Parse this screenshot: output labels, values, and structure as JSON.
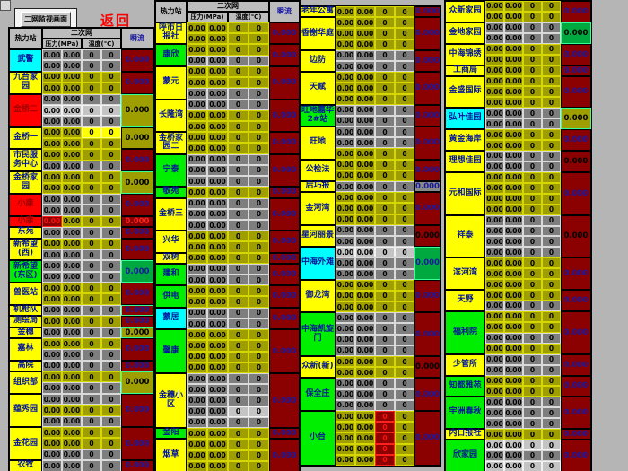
{
  "titlebar": {
    "button_label": "二网监视画面",
    "return_label": "返回"
  },
  "header": {
    "station": "热力站",
    "network": "二次网",
    "pressure": "压力(MPa)",
    "temperature": "温度(℃)",
    "flow": "瞬流"
  },
  "values": {
    "pressure": "0.00",
    "temperature": "0",
    "flow": "0.000"
  },
  "colors": {
    "stage_bg": "#b5b5b5",
    "station_yellow": "#ffff00",
    "station_green": "#00ee00",
    "station_cyan": "#00ffff",
    "station_red": "#ff0000",
    "station_text": "#00149c",
    "station_text_on_red": "#9c0000",
    "cell_olive": "#9e9e00",
    "cell_gray": "#7e7e7e",
    "result_maroon": "#8b0000",
    "result_green": "#00a840",
    "result_olive": "#9e9e00",
    "result_navy_text": "#1818a0"
  },
  "groups": [
    {
      "id": "g1",
      "has_header": true,
      "stations": [
        {
          "n": "武警",
          "bg": "cyan",
          "rows": [
            "g",
            "g"
          ],
          "res": [
            "maroon",
            "navy"
          ]
        },
        {
          "n": "九台家园",
          "bg": "yellow",
          "rows": [
            "o",
            "o"
          ],
          "res": [
            "maroon",
            "navy"
          ]
        },
        {
          "n": "金桥二",
          "bg": "red",
          "rows": [
            "g",
            "s",
            "g"
          ],
          "res": [
            "olive",
            "black"
          ],
          "resb": true
        },
        {
          "n": "金桥一",
          "bg": "yellow",
          "rows": [
            [
              "o",
              "o",
              "y",
              "y"
            ],
            "o"
          ],
          "res": [
            "olive",
            "black"
          ]
        },
        {
          "n": "市民服务中心",
          "bg": "yellow",
          "rows": [
            "o",
            "g"
          ],
          "res": [
            "maroon",
            "navy"
          ]
        },
        {
          "n": "金桥家园",
          "bg": "yellow",
          "rows": [
            "o",
            "o"
          ],
          "res": [
            "olive",
            "black"
          ],
          "resb": true
        },
        {
          "n": "小康",
          "bg": "red",
          "rows": [
            "g",
            "g"
          ],
          "res": [
            "maroon",
            "navy"
          ]
        },
        {
          "n": "小康",
          "bg": "red",
          "rows": [
            [
              "dr",
              "o",
              "o",
              "o"
            ]
          ],
          "res": [
            "maroon",
            "red"
          ]
        },
        {
          "n": "东苑",
          "bg": "yellow",
          "rows": [
            "g"
          ],
          "res": [
            "maroon",
            "navy"
          ]
        },
        {
          "n": "新希望(西)",
          "bg": "yellow",
          "rows": [
            "o",
            "g"
          ],
          "res": [
            "maroon",
            "navy"
          ]
        },
        {
          "n": "新希望(东区)",
          "bg": "green",
          "rows": [
            "g",
            "g"
          ],
          "res": [
            "green",
            "navy"
          ],
          "resb": true
        },
        {
          "n": "兽医站",
          "bg": "yellow",
          "rows": [
            "o",
            "o"
          ],
          "res": [
            "maroon",
            "navy"
          ]
        },
        {
          "n": "机枪队",
          "bg": "yellow",
          "rows": [
            "g"
          ],
          "res": [
            "maroon",
            "navy"
          ],
          "resb": true
        },
        {
          "n": "测绘局",
          "bg": "yellow",
          "rows": [
            "o"
          ],
          "res": [
            "maroon",
            "navy"
          ]
        },
        {
          "n": "金穗",
          "bg": "yellow",
          "rows": [
            "g"
          ],
          "res": [
            "olive",
            "black"
          ],
          "resb": true
        },
        {
          "n": "嘉林",
          "bg": "yellow",
          "rows": [
            "o",
            "g"
          ],
          "res": [
            "maroon",
            "navy"
          ]
        },
        {
          "n": "高院",
          "bg": "yellow",
          "rows": [
            "g"
          ],
          "res": [
            "maroon",
            "navy"
          ]
        },
        {
          "n": "组织部",
          "bg": "yellow",
          "rows": [
            "o",
            "g"
          ],
          "res": [
            "olive",
            "black"
          ],
          "resb": true
        },
        {
          "n": "蕴秀园",
          "bg": "yellow",
          "rows": [
            "g",
            "o",
            "g"
          ],
          "res": [
            "maroon",
            "navy"
          ]
        },
        {
          "n": "金花园",
          "bg": "yellow",
          "rows": [
            "o",
            "o",
            "g"
          ],
          "res": [
            "maroon",
            "navy"
          ]
        },
        {
          "n": "农牧",
          "bg": "yellow",
          "rows": [
            "g"
          ],
          "res": [
            "maroon",
            "navy"
          ]
        }
      ]
    },
    {
      "id": "g2",
      "has_header": true,
      "stations": [
        {
          "n": "呼市日报社",
          "bg": "yellow",
          "rows": [
            "o",
            "o"
          ],
          "res": [
            "maroon",
            "navy"
          ]
        },
        {
          "n": "康欣",
          "bg": "green",
          "rows": [
            "o",
            "g"
          ],
          "res": [
            "maroon",
            "navy"
          ]
        },
        {
          "n": "蒙元",
          "bg": "yellow",
          "rows": [
            "o",
            "o",
            "g"
          ],
          "res": [
            "maroon",
            "navy"
          ]
        },
        {
          "n": "长隆湾",
          "bg": "yellow",
          "rows": [
            "g",
            "o",
            "o"
          ],
          "res": [
            "maroon",
            "navy"
          ]
        },
        {
          "n": "金桥家园二",
          "bg": "yellow",
          "rows": [
            "o",
            "o"
          ],
          "res": [
            "maroon",
            "navy"
          ]
        },
        {
          "n": "宁泰",
          "bg": "green",
          "rows": [
            "g",
            "g",
            "g"
          ],
          "res": [
            "maroon",
            "navy"
          ]
        },
        {
          "n": "敬苑",
          "bg": "green",
          "rows": [
            "o"
          ],
          "res": [
            "maroon",
            "navy"
          ]
        },
        {
          "n": "金桥三",
          "bg": "yellow",
          "rows": [
            "g",
            "g",
            "g"
          ],
          "res": [
            "maroon",
            "navy"
          ]
        },
        {
          "n": "兴华",
          "bg": "yellow",
          "rows": [
            "o",
            "o"
          ],
          "res": [
            "maroon",
            "navy"
          ]
        },
        {
          "n": "双树",
          "bg": "yellow",
          "rows": [
            "o"
          ],
          "res": [
            "maroon",
            "navy"
          ]
        },
        {
          "n": "建和",
          "bg": "green",
          "rows": [
            "g",
            "g"
          ],
          "res": [
            "maroon",
            "navy"
          ]
        },
        {
          "n": "供电",
          "bg": "green",
          "rows": [
            "o",
            "o"
          ],
          "res": [
            "maroon",
            "navy"
          ]
        },
        {
          "n": "蒙居",
          "bg": "cyan",
          "rows": [
            "g",
            "g"
          ],
          "res": [
            "maroon",
            "navy"
          ]
        },
        {
          "n": "馨康",
          "bg": "green",
          "rows": [
            "o",
            "o",
            "o",
            "o"
          ],
          "res": [
            "maroon",
            "navy"
          ]
        },
        {
          "n": "金穗小区",
          "bg": "yellow",
          "rows": [
            "g",
            "g",
            "g",
            [
              "g",
              "g",
              "s",
              "s"
            ],
            "g"
          ],
          "res": [
            "maroon",
            "navy"
          ]
        },
        {
          "n": "金阳",
          "bg": "green",
          "rows": [
            "o"
          ],
          "res": [
            "maroon",
            "navy"
          ]
        },
        {
          "n": "烟草",
          "bg": "yellow",
          "rows": [
            "o",
            "o",
            "o"
          ],
          "res": [
            "maroon",
            "navy"
          ]
        }
      ]
    },
    {
      "id": "g3",
      "has_header": false,
      "stations": [
        {
          "n": "老年公寓",
          "bg": "yellow",
          "rows": [
            "o"
          ],
          "res": [
            "maroon",
            "navy"
          ]
        },
        {
          "n": "香榭华庭",
          "bg": "yellow",
          "rows": [
            "o",
            "o",
            "o"
          ],
          "res": [
            "maroon",
            "navy"
          ]
        },
        {
          "n": "边防",
          "bg": "yellow",
          "rows": [
            "g",
            "g"
          ],
          "res": [
            "maroon",
            "navy"
          ]
        },
        {
          "n": "天赋",
          "bg": "yellow",
          "rows": [
            "o",
            "o",
            "o"
          ],
          "res": [
            "maroon",
            "navy"
          ]
        },
        {
          "n": "旺地嘉华2#站",
          "bg": "green",
          "rows": [
            "g",
            "g"
          ],
          "res": [
            "maroon",
            "navy"
          ]
        },
        {
          "n": "旺地",
          "bg": "yellow",
          "rows": [
            "g",
            "g",
            "o"
          ],
          "res": [
            "maroon",
            "navy"
          ]
        },
        {
          "n": "公检法",
          "bg": "yellow",
          "rows": [
            "o",
            "o"
          ],
          "res": [
            "maroon",
            "navy"
          ]
        },
        {
          "n": "后巧报",
          "bg": "yellow",
          "rows": [
            "g"
          ],
          "res": [
            "gray",
            "navy"
          ]
        },
        {
          "n": "金河湾",
          "bg": "yellow",
          "rows": [
            "o",
            "o",
            "o"
          ],
          "res": [
            "maroon",
            "navy"
          ]
        },
        {
          "n": "星河丽景",
          "bg": "yellow",
          "rows": [
            "g",
            "g"
          ],
          "res": [
            "maroon",
            "black"
          ]
        },
        {
          "n": "中海外滩",
          "bg": "cyan",
          "rows": [
            "s",
            "g",
            "g"
          ],
          "res": [
            "green",
            "navy"
          ],
          "resb": true
        },
        {
          "n": "御龙湾",
          "bg": "yellow",
          "rows": [
            "o",
            "o",
            "o"
          ],
          "res": [
            "maroon",
            "navy"
          ]
        },
        {
          "n": "中海凯旋门",
          "bg": "green",
          "rows": [
            "g",
            "g",
            "g",
            "g"
          ],
          "res": [
            "maroon",
            "navy"
          ]
        },
        {
          "n": "众新(新)",
          "bg": "yellow",
          "rows": [
            "o",
            "o"
          ],
          "res": [
            "maroon",
            "black"
          ]
        },
        {
          "n": "保全庄",
          "bg": "green",
          "rows": [
            "g",
            "g",
            "g"
          ],
          "res": [
            "maroon",
            "navy"
          ]
        },
        {
          "n": "小台",
          "bg": "green",
          "rows": [
            [
              "o",
              "o",
              "dr",
              "o"
            ],
            [
              "o",
              "o",
              "dr",
              "o"
            ],
            [
              "o",
              "o",
              "dr",
              "o"
            ],
            [
              "o",
              "o",
              "dr",
              "o"
            ],
            [
              "o",
              "o",
              "dr",
              "o"
            ]
          ],
          "res": [
            "maroon",
            "navy"
          ]
        }
      ]
    },
    {
      "id": "g4",
      "has_header": false,
      "stations": [
        {
          "n": "众新家园",
          "bg": "yellow",
          "rows": [
            "o",
            "o"
          ],
          "res": [
            "maroon",
            "navy"
          ]
        },
        {
          "n": "金地家园",
          "bg": "yellow",
          "rows": [
            "g",
            "g"
          ],
          "res": [
            "green",
            "black"
          ],
          "resb": true
        },
        {
          "n": "中海锦绣",
          "bg": "yellow",
          "rows": [
            "o",
            "o"
          ],
          "res": [
            "maroon",
            "navy"
          ]
        },
        {
          "n": "工商局",
          "bg": "yellow",
          "rows": [
            "o"
          ],
          "res": [
            "maroon",
            "navy"
          ]
        },
        {
          "n": "金盛国际",
          "bg": "yellow",
          "rows": [
            "o",
            "o",
            "o"
          ],
          "res": [
            "maroon",
            "navy"
          ]
        },
        {
          "n": "弘叶佳园",
          "bg": "cyan",
          "rows": [
            "g",
            "g"
          ],
          "res": [
            "olive",
            "black"
          ],
          "resb": true
        },
        {
          "n": "黄金海岸",
          "bg": "yellow",
          "rows": [
            "o",
            "o"
          ],
          "res": [
            "maroon",
            "navy"
          ]
        },
        {
          "n": "理想佳园",
          "bg": "yellow",
          "rows": [
            "g",
            "g"
          ],
          "res": [
            "maroon",
            "black"
          ]
        },
        {
          "n": "元和国际",
          "bg": "yellow",
          "rows": [
            "o",
            "o",
            "o",
            "o"
          ],
          "res": [
            "maroon",
            "navy"
          ]
        },
        {
          "n": "祥泰",
          "bg": "yellow",
          "rows": [
            "g",
            "g",
            "g",
            "g"
          ],
          "res": [
            "maroon",
            "black"
          ]
        },
        {
          "n": "滨河湾",
          "bg": "yellow",
          "rows": [
            "o",
            "o",
            "o"
          ],
          "res": [
            "maroon",
            "navy"
          ]
        },
        {
          "n": "天野",
          "bg": "yellow",
          "rows": [
            "o",
            "g"
          ],
          "res": [
            "maroon",
            "navy"
          ]
        },
        {
          "n": "福利院",
          "bg": "green",
          "rows": [
            "o",
            "o",
            "g",
            "o"
          ],
          "res": [
            "maroon",
            "navy"
          ]
        },
        {
          "n": "少管所",
          "bg": "yellow",
          "rows": [
            "g",
            "g"
          ],
          "res": [
            "maroon",
            "navy"
          ]
        },
        {
          "n": "知都雅苑",
          "bg": "green",
          "rows": [
            "o",
            "o"
          ],
          "res": [
            "maroon",
            "navy"
          ]
        },
        {
          "n": "宇洲春秋",
          "bg": "green",
          "rows": [
            "g",
            "g",
            "g"
          ],
          "res": [
            "maroon",
            "navy"
          ]
        },
        {
          "n": "内日报社",
          "bg": "yellow",
          "rows": [
            "o"
          ],
          "res": [
            "maroon",
            "navy"
          ]
        },
        {
          "n": "欣家园",
          "bg": "green",
          "rows": [
            "s",
            "g",
            "s"
          ],
          "res": [
            "maroon",
            "navy"
          ]
        }
      ]
    }
  ]
}
